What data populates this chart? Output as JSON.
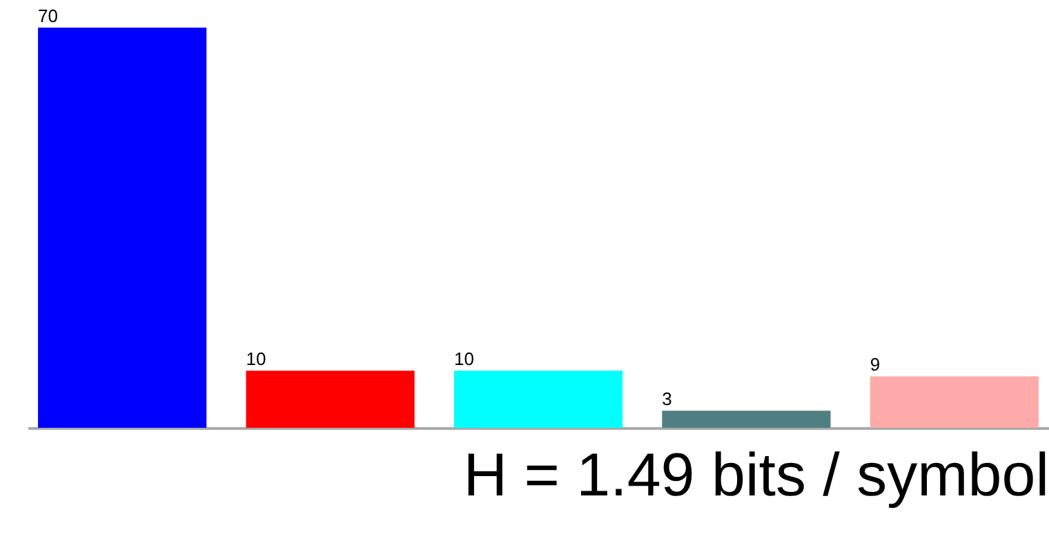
{
  "chart_data": {
    "type": "bar",
    "categories": [
      null,
      null,
      null,
      null,
      null
    ],
    "values": [
      70,
      10,
      10,
      3,
      9
    ],
    "colors": [
      "#0000ff",
      "#ff0000",
      "#00ffff",
      "#4f7f82",
      "#ffaaaa"
    ],
    "data_labels": true,
    "annotations": [
      "H = 1.49 bits / symbol"
    ]
  }
}
